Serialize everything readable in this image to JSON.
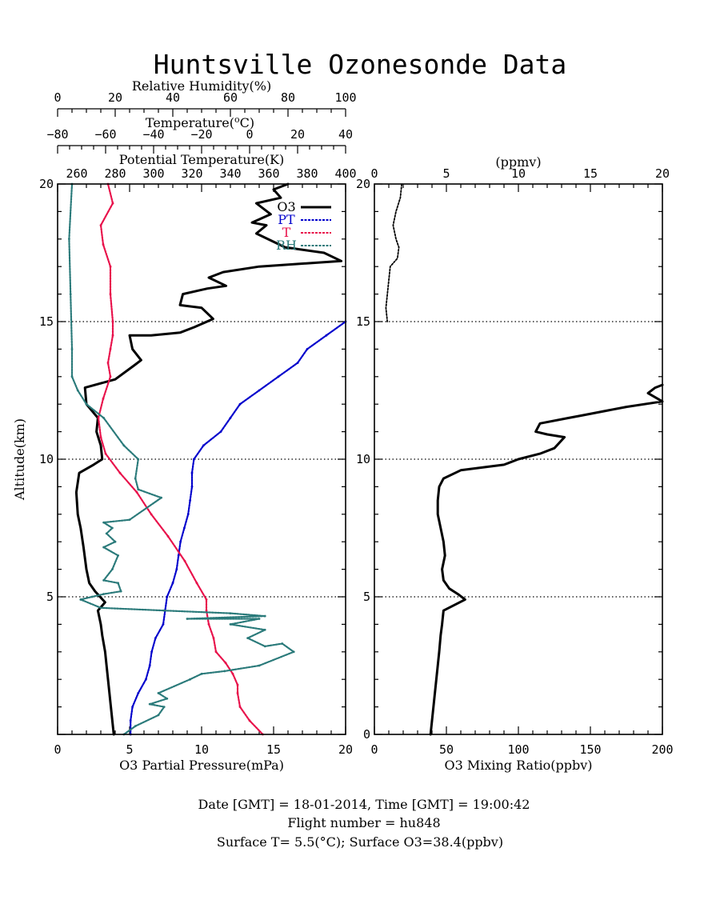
{
  "page": {
    "title": "Huntsville Ozonesonde Data",
    "footer_line1": "Date [GMT] = 18-01-2014,  Time [GMT] = 19:00:42",
    "footer_line2": "Flight number = hu848",
    "footer_line3": "Surface T= 5.5(°C); Surface O3=38.4(ppbv)"
  },
  "chart_data": [
    {
      "type": "line",
      "panel": "left",
      "title": "",
      "ylabel": "Altitude(km)",
      "ylim": [
        0,
        20
      ],
      "yticks": [
        5,
        10,
        15,
        20
      ],
      "yticklabels": [
        "5",
        "10",
        "15",
        "20"
      ],
      "grid_horizontal_dotted_at": [
        5,
        10,
        15
      ],
      "axes": {
        "o3_pp": {
          "label": "O3 Partial Pressure(mPa)",
          "range": [
            0,
            20
          ],
          "ticks": [
            0,
            5,
            10,
            15,
            20
          ]
        },
        "rh": {
          "label": "Relative Humidity(%)",
          "range": [
            0,
            100
          ],
          "ticks": [
            0,
            20,
            40,
            60,
            80,
            100
          ]
        },
        "temp": {
          "label": "Temperature(",
          "label_sup": "o",
          "label_tail": "C)",
          "range": [
            -80,
            40
          ],
          "ticks": [
            -80,
            -60,
            -40,
            -20,
            0,
            20,
            40
          ],
          "ticklabels": [
            "−80",
            "−60",
            "−40",
            "−20",
            "0",
            "20",
            "40"
          ]
        },
        "pt": {
          "label": "Potential Temperature(K)",
          "range": [
            250,
            400
          ],
          "ticks": [
            260,
            280,
            300,
            320,
            340,
            360,
            380,
            400
          ]
        }
      },
      "legend": {
        "position": "top-right",
        "entries": [
          "O3",
          "PT",
          "T",
          "RH"
        ]
      },
      "series": [
        {
          "name": "O3",
          "axis": "o3_pp",
          "color": "#000000",
          "points": [
            [
              3.9,
              0.0
            ],
            [
              3.8,
              0.5
            ],
            [
              3.7,
              1.0
            ],
            [
              3.5,
              2.0
            ],
            [
              3.3,
              3.0
            ],
            [
              3.1,
              3.6
            ],
            [
              3.0,
              4.0
            ],
            [
              2.8,
              4.5
            ],
            [
              3.3,
              4.8
            ],
            [
              2.6,
              5.2
            ],
            [
              2.2,
              5.5
            ],
            [
              2.0,
              6.0
            ],
            [
              1.8,
              6.8
            ],
            [
              1.6,
              7.5
            ],
            [
              1.4,
              8.0
            ],
            [
              1.3,
              8.8
            ],
            [
              1.5,
              9.5
            ],
            [
              2.5,
              9.8
            ],
            [
              3.1,
              10.0
            ],
            [
              3.0,
              10.5
            ],
            [
              2.7,
              11.0
            ],
            [
              2.8,
              11.5
            ],
            [
              2.0,
              12.0
            ],
            [
              1.9,
              12.6
            ],
            [
              4.0,
              12.9
            ],
            [
              5.3,
              13.4
            ],
            [
              5.8,
              13.6
            ],
            [
              5.2,
              14.0
            ],
            [
              5.0,
              14.5
            ],
            [
              6.5,
              14.5
            ],
            [
              8.5,
              14.6
            ],
            [
              9.5,
              14.8
            ],
            [
              10.8,
              15.1
            ],
            [
              10.0,
              15.5
            ],
            [
              8.5,
              15.6
            ],
            [
              8.7,
              16.0
            ],
            [
              10.4,
              16.2
            ],
            [
              11.7,
              16.3
            ],
            [
              10.5,
              16.6
            ],
            [
              11.5,
              16.8
            ],
            [
              14.0,
              17.0
            ],
            [
              19.7,
              17.2
            ],
            [
              18.5,
              17.5
            ],
            [
              15.8,
              17.7
            ],
            [
              13.8,
              18.2
            ],
            [
              14.5,
              18.5
            ],
            [
              13.5,
              18.6
            ],
            [
              14.8,
              18.9
            ],
            [
              13.8,
              19.3
            ],
            [
              15.5,
              19.5
            ],
            [
              15.0,
              19.8
            ],
            [
              16.0,
              20.0
            ]
          ]
        },
        {
          "name": "PT",
          "axis": "pt",
          "color": "#0000cc",
          "points": [
            [
              288,
              0.0
            ],
            [
              288,
              0.5
            ],
            [
              289,
              1.0
            ],
            [
              292,
              1.5
            ],
            [
              296,
              2.0
            ],
            [
              298,
              2.5
            ],
            [
              299,
              3.0
            ],
            [
              301,
              3.5
            ],
            [
              305,
              4.0
            ],
            [
              306,
              4.5
            ],
            [
              307,
              5.0
            ],
            [
              310,
              5.5
            ],
            [
              312,
              6.0
            ],
            [
              313,
              6.5
            ],
            [
              314,
              7.0
            ],
            [
              316,
              7.5
            ],
            [
              318,
              8.0
            ],
            [
              319,
              8.5
            ],
            [
              320,
              9.0
            ],
            [
              320,
              9.5
            ],
            [
              321,
              10.0
            ],
            [
              326,
              10.5
            ],
            [
              335,
              11.0
            ],
            [
              340,
              11.5
            ],
            [
              345,
              12.0
            ],
            [
              355,
              12.5
            ],
            [
              365,
              13.0
            ],
            [
              375,
              13.5
            ],
            [
              380,
              14.0
            ],
            [
              390,
              14.5
            ],
            [
              400,
              15.0
            ]
          ]
        },
        {
          "name": "T",
          "axis": "temp",
          "color": "#e8104a",
          "points": [
            [
              5.5,
              0.0
            ],
            [
              0,
              0.5
            ],
            [
              -4,
              1.0
            ],
            [
              -5,
              1.5
            ],
            [
              -5,
              1.8
            ],
            [
              -7,
              2.2
            ],
            [
              -10,
              2.6
            ],
            [
              -14,
              3.0
            ],
            [
              -15,
              3.5
            ],
            [
              -17,
              4.0
            ],
            [
              -18,
              4.5
            ],
            [
              -18,
              4.9
            ],
            [
              -22,
              5.5
            ],
            [
              -27,
              6.3
            ],
            [
              -34,
              7.2
            ],
            [
              -41,
              8.0
            ],
            [
              -47,
              8.8
            ],
            [
              -54,
              9.5
            ],
            [
              -60,
              10.2
            ],
            [
              -62,
              10.8
            ],
            [
              -63,
              11.5
            ],
            [
              -61,
              12.2
            ],
            [
              -58,
              13.0
            ],
            [
              -59,
              13.5
            ],
            [
              -58,
              14.0
            ],
            [
              -57,
              14.5
            ],
            [
              -57,
              15.0
            ],
            [
              -58,
              16.0
            ],
            [
              -58,
              17.0
            ],
            [
              -61,
              17.8
            ],
            [
              -62,
              18.5
            ],
            [
              -57,
              19.3
            ],
            [
              -59,
              20.0
            ]
          ]
        },
        {
          "name": "RH",
          "axis": "rh",
          "color": "#2a7a7a",
          "points": [
            [
              23,
              0.0
            ],
            [
              27,
              0.3
            ],
            [
              35,
              0.7
            ],
            [
              37,
              1.0
            ],
            [
              32,
              1.1
            ],
            [
              38,
              1.3
            ],
            [
              35,
              1.5
            ],
            [
              46,
              2.0
            ],
            [
              50,
              2.2
            ],
            [
              58,
              2.3
            ],
            [
              70,
              2.5
            ],
            [
              82,
              3.0
            ],
            [
              78,
              3.3
            ],
            [
              72,
              3.2
            ],
            [
              66,
              3.5
            ],
            [
              72,
              3.8
            ],
            [
              60,
              4.0
            ],
            [
              70,
              4.2
            ],
            [
              45,
              4.2
            ],
            [
              72,
              4.3
            ],
            [
              60,
              4.4
            ],
            [
              37,
              4.5
            ],
            [
              15,
              4.6
            ],
            [
              8,
              4.9
            ],
            [
              12,
              5.0
            ],
            [
              16,
              5.1
            ],
            [
              22,
              5.2
            ],
            [
              21,
              5.5
            ],
            [
              16,
              5.6
            ],
            [
              19,
              6.0
            ],
            [
              21,
              6.5
            ],
            [
              16,
              6.8
            ],
            [
              20,
              7.0
            ],
            [
              17,
              7.3
            ],
            [
              19,
              7.5
            ],
            [
              16,
              7.7
            ],
            [
              25,
              7.8
            ],
            [
              36,
              8.6
            ],
            [
              28,
              8.9
            ],
            [
              27,
              9.3
            ],
            [
              28,
              10.0
            ],
            [
              23,
              10.5
            ],
            [
              16,
              11.5
            ],
            [
              10,
              12.0
            ],
            [
              7,
              12.5
            ],
            [
              5,
              13.0
            ],
            [
              5,
              14.0
            ],
            [
              4.5,
              16.0
            ],
            [
              4,
              18.0
            ],
            [
              5,
              20.0
            ]
          ]
        }
      ]
    },
    {
      "type": "line",
      "panel": "right",
      "title": "",
      "ylim": [
        0,
        20
      ],
      "yticks": [
        0,
        5,
        10,
        15,
        20
      ],
      "yticklabels": [
        "0",
        "5",
        "10",
        "15",
        "20"
      ],
      "grid_horizontal_dotted_at": [
        5,
        10,
        15
      ],
      "axes": {
        "mr": {
          "label": "O3 Mixing Ratio(ppbv)",
          "range": [
            0,
            200
          ],
          "ticks": [
            0,
            50,
            100,
            150,
            200
          ]
        },
        "ppmv": {
          "label": "(ppmv)",
          "range": [
            0,
            20
          ],
          "ticks": [
            0,
            5,
            10,
            15,
            20
          ]
        }
      },
      "series": [
        {
          "name": "O3 mixing ratio",
          "axis": "mr",
          "color": "#000000",
          "points": [
            [
              39,
              0.0
            ],
            [
              40,
              0.5
            ],
            [
              41,
              1.0
            ],
            [
              43,
              2.0
            ],
            [
              45,
              3.0
            ],
            [
              46,
              3.6
            ],
            [
              47,
              4.0
            ],
            [
              48,
              4.5
            ],
            [
              63,
              4.9
            ],
            [
              58,
              5.1
            ],
            [
              52,
              5.3
            ],
            [
              48,
              5.6
            ],
            [
              47,
              6.0
            ],
            [
              49,
              6.5
            ],
            [
              48,
              7.0
            ],
            [
              46,
              7.5
            ],
            [
              44,
              8.0
            ],
            [
              44,
              8.5
            ],
            [
              45,
              9.0
            ],
            [
              48,
              9.3
            ],
            [
              60,
              9.6
            ],
            [
              90,
              9.8
            ],
            [
              100,
              10.0
            ],
            [
              115,
              10.2
            ],
            [
              125,
              10.4
            ],
            [
              132,
              10.8
            ],
            [
              120,
              10.9
            ],
            [
              112,
              11.0
            ],
            [
              115,
              11.3
            ],
            [
              135,
              11.5
            ],
            [
              145,
              11.6
            ],
            [
              175,
              11.9
            ],
            [
              200,
              12.1
            ],
            [
              190,
              12.4
            ],
            [
              195,
              12.6
            ],
            [
              200,
              12.7
            ]
          ]
        },
        {
          "name": "O3 mixing ratio (ppmv)",
          "axis": "ppmv",
          "color": "#000000",
          "style": "dotted",
          "points": [
            [
              0.9,
              15.0
            ],
            [
              0.8,
              15.5
            ],
            [
              0.9,
              16.0
            ],
            [
              1.0,
              16.5
            ],
            [
              1.1,
              17.0
            ],
            [
              1.6,
              17.3
            ],
            [
              1.7,
              17.7
            ],
            [
              1.5,
              18.0
            ],
            [
              1.3,
              18.5
            ],
            [
              1.5,
              19.0
            ],
            [
              1.8,
              19.5
            ],
            [
              1.9,
              20.0
            ]
          ]
        }
      ]
    }
  ]
}
